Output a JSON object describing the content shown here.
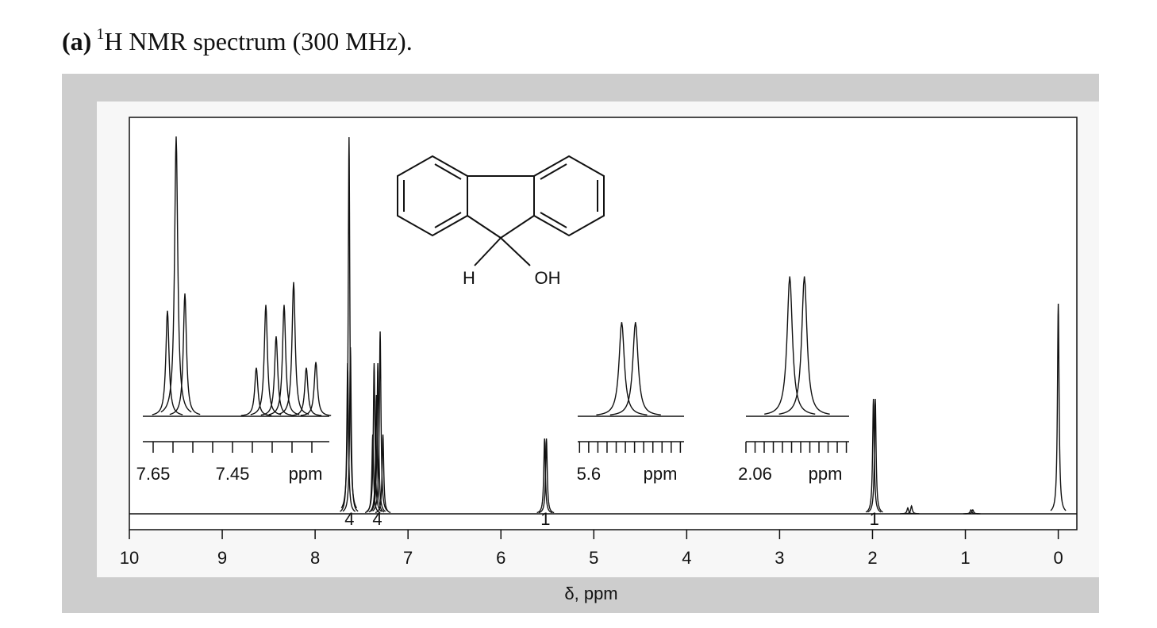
{
  "title": {
    "label": "(a)",
    "sup": "1",
    "text": "H NMR spectrum (300 MHz)."
  },
  "chart_data": {
    "type": "spectrum",
    "xlabel": "δ, ppm",
    "xlim": [
      10,
      -0.2
    ],
    "xticks": [
      10,
      9,
      8,
      7,
      6,
      5,
      4,
      3,
      2,
      1,
      0
    ],
    "ylim": [
      -4,
      100
    ],
    "peaks": {
      "x": [
        7.65,
        7.635,
        7.62,
        7.38,
        7.365,
        7.34,
        7.325,
        7.3,
        7.27,
        5.53,
        5.51,
        1.99,
        1.97,
        1.62,
        1.58,
        0.94,
        0.92,
        0
      ],
      "values": [
        38,
        95,
        42,
        20,
        38,
        30,
        38,
        46,
        20,
        19,
        19,
        29,
        29,
        1.5,
        2,
        1,
        1,
        53
      ]
    },
    "integrals": {
      "x": [
        7.63,
        7.33,
        5.52,
        1.98
      ],
      "values": [
        4,
        4,
        1,
        1
      ]
    },
    "insets": [
      {
        "xlabel": "ppm",
        "xlim": [
          7.676,
          7.206
        ],
        "ylim": [
          0,
          100
        ],
        "xticks": [
          7.65,
          7.45
        ],
        "xminorticks": [
          7.6,
          7.55,
          7.5,
          7.4,
          7.35,
          7.3,
          7.25
        ],
        "peaks": {
          "x": [
            7.614,
            7.592,
            7.57,
            7.39,
            7.366,
            7.34,
            7.32,
            7.296,
            7.264,
            7.24
          ],
          "values": [
            37,
            98,
            43,
            17,
            39,
            28,
            39,
            47,
            17,
            19
          ]
        }
      },
      {
        "xlabel": "ppm",
        "xlim": [
          5.612,
          5.496
        ],
        "ylim": [
          0,
          100
        ],
        "xticks": [
          5.6
        ],
        "xminorticks": [
          5.61,
          5.59,
          5.58,
          5.57,
          5.56,
          5.55,
          5.54,
          5.53,
          5.52,
          5.51,
          5.5
        ],
        "peaks": {
          "x": [
            5.564,
            5.549
          ],
          "values": [
            33,
            33
          ]
        }
      },
      {
        "xlabel": "ppm",
        "xlim": [
          2.07,
          1.957
        ],
        "ylim": [
          0,
          100
        ],
        "xticks": [
          2.06
        ],
        "xminorticks": [
          2.07,
          2.05,
          2.04,
          2.03,
          2.02,
          2.01,
          2.0,
          1.99,
          1.98,
          1.97,
          1.96
        ],
        "peaks": {
          "x": [
            2.022,
            2.006
          ],
          "values": [
            49,
            49
          ]
        }
      }
    ]
  },
  "structure": {
    "labels": [
      "H",
      "OH"
    ]
  }
}
